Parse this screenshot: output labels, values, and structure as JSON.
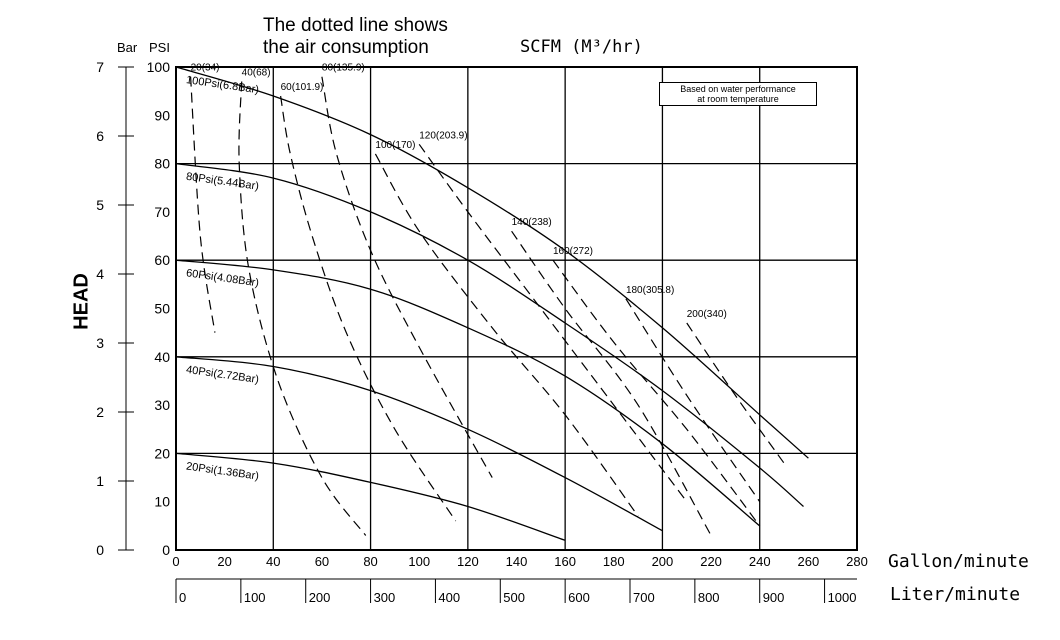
{
  "annotation": {
    "line1": "The dotted line shows",
    "line2": "the air consumption"
  },
  "note": {
    "line1": "Based on water performance",
    "line2": "at room temperature"
  },
  "scfm_label": "SCFM (M³/hr)",
  "units": {
    "gallon": "Gallon/minute",
    "liter": "Liter/minute",
    "bar": "Bar",
    "psi": "PSI",
    "head": "HEAD"
  },
  "chart_data": {
    "type": "line",
    "xlabel": "Gallon/minute",
    "x2label": "Liter/minute",
    "ylabel": "HEAD",
    "xlim": [
      0,
      280
    ],
    "ylim": [
      0,
      100
    ],
    "x_ticks": [
      0,
      20,
      40,
      60,
      80,
      100,
      120,
      140,
      160,
      180,
      200,
      220,
      240,
      260,
      280
    ],
    "x_tick_labels": [
      "0",
      "20",
      "40",
      "60",
      "80",
      "100",
      "120",
      "140",
      "160",
      "180",
      "200",
      "220",
      "240",
      "260",
      "280"
    ],
    "y_ticks_psi": [
      0,
      10,
      20,
      30,
      40,
      50,
      60,
      70,
      80,
      90,
      100
    ],
    "y_ticks_bar": [
      0,
      1,
      2,
      3,
      4,
      5,
      6,
      7
    ],
    "liter_ticks": [
      "0",
      "100",
      "200",
      "300",
      "400",
      "500",
      "600",
      "700",
      "800",
      "900",
      "1000"
    ],
    "grid": true,
    "pressure_curves": [
      {
        "name": "100Psi(6.8Bar)",
        "x": [
          0,
          40,
          80,
          120,
          160,
          200,
          240,
          260
        ],
        "y": [
          100,
          94,
          86,
          75,
          62,
          46,
          28,
          19
        ]
      },
      {
        "name": "80Psi(5.44Bar)",
        "x": [
          0,
          40,
          80,
          120,
          160,
          200,
          240,
          258
        ],
        "y": [
          80,
          77,
          70,
          60,
          47,
          33,
          17,
          9
        ]
      },
      {
        "name": "60Psi(4.08Bar)",
        "x": [
          0,
          40,
          80,
          120,
          160,
          200,
          240
        ],
        "y": [
          60,
          58,
          54,
          46,
          36,
          22,
          5
        ]
      },
      {
        "name": "40Psi(2.72Bar)",
        "x": [
          0,
          40,
          80,
          120,
          160,
          200
        ],
        "y": [
          40,
          38,
          33,
          25,
          15,
          4
        ]
      },
      {
        "name": "20Psi(1.36Bar)",
        "x": [
          0,
          40,
          80,
          120,
          160
        ],
        "y": [
          20,
          18,
          14,
          9,
          2
        ]
      }
    ],
    "air_consumption_curves": [
      {
        "name": "20(34)",
        "x": [
          6,
          10,
          16
        ],
        "y": [
          98,
          65,
          45
        ]
      },
      {
        "name": "40(68)",
        "x": [
          27,
          26,
          30,
          42,
          60,
          78
        ],
        "y": [
          97,
          80,
          58,
          35,
          15,
          3
        ]
      },
      {
        "name": "60(101.9)",
        "x": [
          43,
          47,
          56,
          70,
          90,
          115
        ],
        "y": [
          94,
          82,
          65,
          45,
          25,
          6
        ]
      },
      {
        "name": "80(135.9)",
        "x": [
          60,
          66,
          80,
          100,
          130
        ],
        "y": [
          98,
          82,
          62,
          42,
          15
        ]
      },
      {
        "name": "100(170)",
        "x": [
          82,
          100,
          130,
          160,
          190
        ],
        "y": [
          82,
          66,
          46,
          28,
          7
        ]
      },
      {
        "name": "120(203.9)",
        "x": [
          100,
          120,
          150,
          180,
          210
        ],
        "y": [
          84,
          70,
          50,
          30,
          10
        ]
      },
      {
        "name": "140(238)",
        "x": [
          138,
          160,
          190,
          220
        ],
        "y": [
          66,
          50,
          30,
          3
        ]
      },
      {
        "name": "160(272)",
        "x": [
          155,
          180,
          210,
          240
        ],
        "y": [
          60,
          43,
          25,
          5
        ]
      },
      {
        "name": "180(305.8)",
        "x": [
          185,
          210,
          240
        ],
        "y": [
          52,
          32,
          10
        ]
      },
      {
        "name": "200(340)",
        "x": [
          210,
          230,
          250
        ],
        "y": [
          47,
          32,
          18
        ]
      }
    ]
  }
}
